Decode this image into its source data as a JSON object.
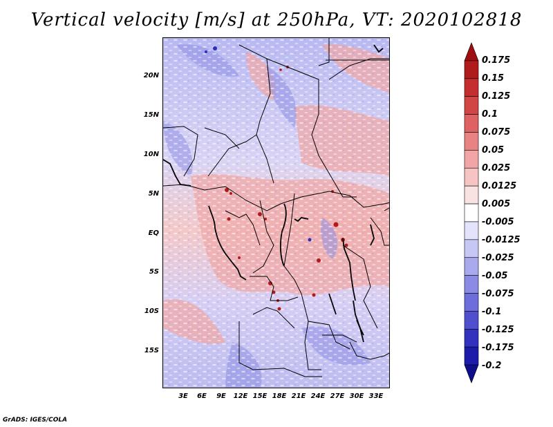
{
  "title": "Vertical velocity [m/s] at 250hPa, VT: 2020102818",
  "credit": "GrADS: IGES/COLA",
  "lat_labels": [
    "20N",
    "15N",
    "10N",
    "5N",
    "EQ",
    "5S",
    "10S",
    "15S"
  ],
  "lon_labels": [
    "3E",
    "6E",
    "9E",
    "12E",
    "15E",
    "18E",
    "21E",
    "24E",
    "27E",
    "30E",
    "33E"
  ],
  "colorbar": {
    "labels": [
      "0.175",
      "0.15",
      "0.125",
      "0.1",
      "0.075",
      "0.05",
      "0.025",
      "0.0125",
      "0.005",
      "-0.005",
      "-0.0125",
      "-0.025",
      "-0.05",
      "-0.075",
      "-0.1",
      "-0.125",
      "-0.175",
      "-0.2"
    ],
    "colors": [
      "#9e1010",
      "#b01c1c",
      "#c42e2e",
      "#d24545",
      "#de6262",
      "#e98383",
      "#f1a5a5",
      "#f7c4c4",
      "#fbe2e2",
      "#ffffff",
      "#e3e3fb",
      "#c7c7f5",
      "#a9a9ee",
      "#8b8be6",
      "#6d6ddc",
      "#5050cf",
      "#3232bf",
      "#1c1cab",
      "#0e0e8c"
    ]
  }
}
